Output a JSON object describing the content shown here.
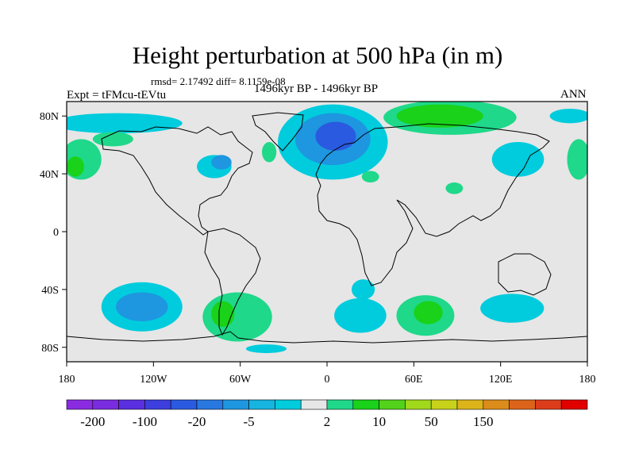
{
  "chart_data": {
    "type": "heatmap",
    "title": "Height perturbation at 500 hPa (in m)",
    "stats_label": "rmsd= 2.17492 diff= 8.1159e-08",
    "left_label": "Expt = tFMcu-tEVtu",
    "center_label": "1496kyr BP - 1496kyr BP",
    "right_label": "ANN",
    "x_ticks": [
      {
        "value": -180,
        "label": "180"
      },
      {
        "value": -120,
        "label": "120W"
      },
      {
        "value": -60,
        "label": "60W"
      },
      {
        "value": 0,
        "label": "0"
      },
      {
        "value": 60,
        "label": "60E"
      },
      {
        "value": 120,
        "label": "120E"
      },
      {
        "value": 180,
        "label": "180"
      }
    ],
    "y_ticks": [
      {
        "value": 80,
        "label": "80N"
      },
      {
        "value": 40,
        "label": "40N"
      },
      {
        "value": 0,
        "label": "0"
      },
      {
        "value": -40,
        "label": "40S"
      },
      {
        "value": -80,
        "label": "80S"
      }
    ],
    "xlim": [
      -180,
      180
    ],
    "ylim": [
      -90,
      90
    ],
    "colorbar": {
      "colors": [
        "#8a2be2",
        "#7a2ce0",
        "#5a2fe0",
        "#3c3fdd",
        "#2a5ae0",
        "#2878e0",
        "#1e96e0",
        "#16b4e0",
        "#00ccdd",
        "#e6e6e6",
        "#1fd88a",
        "#19d219",
        "#52d21a",
        "#a0d81a",
        "#c8d21a",
        "#dcb41a",
        "#dc8c1a",
        "#dc641a",
        "#dc3c1a",
        "#e00000"
      ],
      "labels": [
        {
          "boundary": 1,
          "text": "-200"
        },
        {
          "boundary": 3,
          "text": "-100"
        },
        {
          "boundary": 5,
          "text": "-20"
        },
        {
          "boundary": 7,
          "text": "-5"
        },
        {
          "boundary": 10,
          "text": "2"
        },
        {
          "boundary": 12,
          "text": "10"
        },
        {
          "boundary": 14,
          "text": "50"
        },
        {
          "boundary": 16,
          "text": "150"
        }
      ]
    },
    "anomaly_regions": [
      {
        "name": "north-pacific-negative",
        "category": "-5",
        "color": "#00ccdd",
        "lon": -145,
        "lat": 75,
        "rlon": 45,
        "rlat": 7
      },
      {
        "name": "north-pacific-pos-west",
        "category": "2",
        "color": "#1fd88a",
        "lon": -170,
        "lat": 50,
        "rlon": 14,
        "rlat": 14
      },
      {
        "name": "north-pacific-pos-west-core",
        "category": "10",
        "color": "#19d219",
        "lon": -174,
        "lat": 45,
        "rlon": 6,
        "rlat": 7
      },
      {
        "name": "north-pacific-pos-east",
        "category": "2",
        "color": "#1fd88a",
        "lon": -148,
        "lat": 64,
        "rlon": 14,
        "rlat": 5
      },
      {
        "name": "north-america-negative",
        "category": "-5",
        "color": "#00ccdd",
        "lon": -78,
        "lat": 45,
        "rlon": 12,
        "rlat": 8
      },
      {
        "name": "north-america-negative-core",
        "category": "-20",
        "color": "#1e96e0",
        "lon": -73,
        "lat": 48,
        "rlon": 7,
        "rlat": 5
      },
      {
        "name": "north-atlantic-positive",
        "category": "2",
        "color": "#1fd88a",
        "lon": -40,
        "lat": 55,
        "rlon": 5,
        "rlat": 7
      },
      {
        "name": "europe-negative-outer",
        "category": "-5",
        "color": "#00ccdd",
        "lon": 4,
        "lat": 62,
        "rlon": 38,
        "rlat": 26
      },
      {
        "name": "europe-negative-mid",
        "category": "-20",
        "color": "#1e96e0",
        "lon": 4,
        "lat": 64,
        "rlon": 26,
        "rlat": 18
      },
      {
        "name": "europe-negative-core",
        "category": "-100",
        "color": "#2a5ae0",
        "lon": 6,
        "lat": 66,
        "rlon": 14,
        "rlat": 10
      },
      {
        "name": "mediterranean-positive",
        "category": "2",
        "color": "#1fd88a",
        "lon": 30,
        "lat": 38,
        "rlon": 6,
        "rlat": 4
      },
      {
        "name": "arabia-positive",
        "category": "2",
        "color": "#1fd88a",
        "lon": 88,
        "lat": 30,
        "rlon": 6,
        "rlat": 4
      },
      {
        "name": "arctic-asia-positive",
        "category": "2",
        "color": "#1fd88a",
        "lon": 85,
        "lat": 79,
        "rlon": 46,
        "rlat": 12
      },
      {
        "name": "arctic-asia-positive-core",
        "category": "10",
        "color": "#19d219",
        "lon": 78,
        "lat": 80,
        "rlon": 30,
        "rlat": 8
      },
      {
        "name": "east-asia-negative",
        "category": "-5",
        "color": "#00ccdd",
        "lon": 132,
        "lat": 50,
        "rlon": 18,
        "rlat": 12
      },
      {
        "name": "northwest-pacific-negative",
        "category": "-5",
        "color": "#00ccdd",
        "lon": 168,
        "lat": 80,
        "rlon": 14,
        "rlat": 5
      },
      {
        "name": "dateline-positive-east",
        "category": "2",
        "color": "#1fd88a",
        "lon": 174,
        "lat": 50,
        "rlon": 8,
        "rlat": 14
      },
      {
        "name": "south-pacific-negative",
        "category": "-5",
        "color": "#00ccdd",
        "lon": -128,
        "lat": -52,
        "rlon": 28,
        "rlat": 17
      },
      {
        "name": "south-pacific-negative-core",
        "category": "-20",
        "color": "#1e96e0",
        "lon": -128,
        "lat": -52,
        "rlon": 18,
        "rlat": 10
      },
      {
        "name": "south-america-positive",
        "category": "2",
        "color": "#1fd88a",
        "lon": -62,
        "lat": -59,
        "rlon": 24,
        "rlat": 17
      },
      {
        "name": "south-america-positive-core",
        "category": "10",
        "color": "#19d219",
        "lon": -72,
        "lat": -57,
        "rlon": 8,
        "rlat": 9
      },
      {
        "name": "south-america-negative-south",
        "category": "-5",
        "color": "#00ccdd",
        "lon": -42,
        "lat": -81,
        "rlon": 14,
        "rlat": 3
      },
      {
        "name": "south-atlantic-negative",
        "category": "-5",
        "color": "#00ccdd",
        "lon": 23,
        "lat": -58,
        "rlon": 18,
        "rlat": 12
      },
      {
        "name": "south-atlantic-negative-north",
        "category": "-5",
        "color": "#00ccdd",
        "lon": 25,
        "lat": -40,
        "rlon": 8,
        "rlat": 7
      },
      {
        "name": "south-indian-positive",
        "category": "2",
        "color": "#1fd88a",
        "lon": 68,
        "lat": -58,
        "rlon": 20,
        "rlat": 14
      },
      {
        "name": "south-indian-positive-core",
        "category": "10",
        "color": "#19d219",
        "lon": 70,
        "lat": -56,
        "rlon": 10,
        "rlat": 8
      },
      {
        "name": "australia-south-negative",
        "category": "-5",
        "color": "#00ccdd",
        "lon": 128,
        "lat": -53,
        "rlon": 22,
        "rlat": 10
      }
    ]
  }
}
